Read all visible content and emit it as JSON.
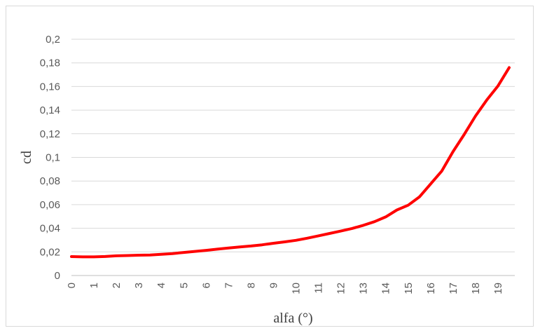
{
  "chart_data": {
    "type": "line",
    "xlabel": "alfa (°)",
    "ylabel": "cd",
    "x_tick_labels": [
      "0",
      "1",
      "2",
      "3",
      "4",
      "5",
      "6",
      "7",
      "8",
      "9",
      "10",
      "11",
      "12",
      "13",
      "14",
      "15",
      "16",
      "17",
      "18",
      "19"
    ],
    "y_tick_labels": [
      "0",
      "0,02",
      "0,04",
      "0,06",
      "0,08",
      "0,1",
      "0,12",
      "0,14",
      "0,16",
      "0,18",
      "0,2"
    ],
    "xlim": [
      0,
      19.75
    ],
    "ylim": [
      0,
      0.2
    ],
    "grid": true,
    "series": [
      {
        "color": "#ff0000",
        "x": [
          0,
          0.5,
          1,
          1.5,
          2,
          2.5,
          3,
          3.5,
          4,
          4.5,
          5,
          5.5,
          6,
          6.5,
          7,
          7.5,
          8,
          8.5,
          9,
          9.5,
          10,
          10.5,
          11,
          11.5,
          12,
          12.5,
          13,
          13.5,
          14,
          14.5,
          15,
          15.5,
          16,
          16.5,
          17,
          17.5,
          18,
          18.5,
          19,
          19.5
        ],
        "y": [
          0.016,
          0.0158,
          0.0158,
          0.0161,
          0.0167,
          0.0169,
          0.0172,
          0.0174,
          0.018,
          0.0186,
          0.0195,
          0.0204,
          0.0213,
          0.0223,
          0.0233,
          0.0242,
          0.025,
          0.026,
          0.0273,
          0.0285,
          0.0298,
          0.0316,
          0.0336,
          0.0356,
          0.0376,
          0.0398,
          0.0425,
          0.0456,
          0.0496,
          0.0555,
          0.0595,
          0.0665,
          0.0775,
          0.0885,
          0.105,
          0.1195,
          0.135,
          0.1485,
          0.1605,
          0.176
        ]
      }
    ]
  }
}
